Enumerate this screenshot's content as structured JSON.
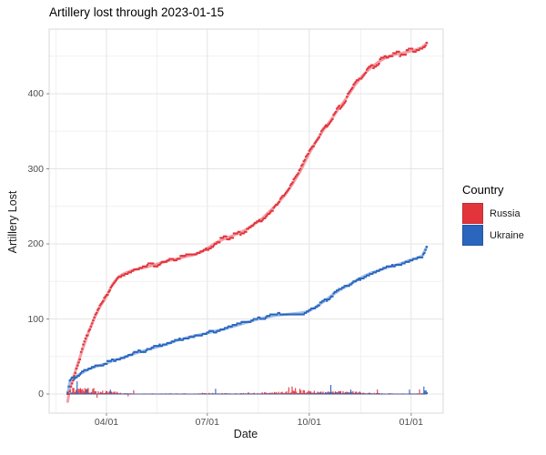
{
  "title": "Artillery lost through 2023-01-15",
  "axes": {
    "x_label": "Date",
    "y_label": "Artillery Lost",
    "x_tick_labels": [
      "04/01",
      "07/01",
      "10/01",
      "01/01"
    ],
    "y_tick_labels": [
      "0",
      "100",
      "200",
      "300",
      "400"
    ]
  },
  "legend": {
    "title": "Country",
    "items": [
      {
        "label": "Russia",
        "color": "#E3343C"
      },
      {
        "label": "Ukraine",
        "color": "#2A66BE"
      }
    ]
  },
  "chart_data": {
    "type": "line",
    "title": "Artillery lost through 2023-01-15",
    "xlabel": "Date",
    "ylabel": "Artillery Lost",
    "date_range": [
      "2022-02-25",
      "2023-01-15"
    ],
    "x_major_days": [
      35,
      126,
      218,
      310
    ],
    "x_major_labels": [
      "04/01",
      "07/01",
      "10/01",
      "01/01"
    ],
    "x_minor_days": [
      -10.5,
      80.5,
      172,
      264.5
    ],
    "y_major": [
      0,
      100,
      200,
      300,
      400
    ],
    "y_minor": [
      50,
      150,
      250,
      350,
      450
    ],
    "ylim": [
      -23,
      490
    ],
    "grid": true,
    "legend_position": "right",
    "legend_title": "Country",
    "series": [
      {
        "name": "Russia",
        "kind": "cumulative-points-with-smoother-and-daily-bars",
        "point_color": "#E3343C",
        "smooth_color": "#F19AA0",
        "bar_color": "#E3343C",
        "smooth_start_value": -10,
        "points_day_value": [
          [
            0,
            0
          ],
          [
            2,
            8
          ],
          [
            5,
            22
          ],
          [
            9,
            40
          ],
          [
            14,
            62
          ],
          [
            19,
            83
          ],
          [
            24,
            101
          ],
          [
            29,
            116
          ],
          [
            35,
            130
          ],
          [
            40,
            145
          ],
          [
            45,
            155
          ],
          [
            50,
            160
          ],
          [
            57,
            164
          ],
          [
            64,
            167
          ],
          [
            71,
            169
          ],
          [
            78,
            172
          ],
          [
            85,
            175
          ],
          [
            92,
            178
          ],
          [
            99,
            180
          ],
          [
            106,
            183
          ],
          [
            113,
            185
          ],
          [
            120,
            189
          ],
          [
            126,
            194
          ],
          [
            133,
            201
          ],
          [
            140,
            206
          ],
          [
            147,
            210
          ],
          [
            154,
            214
          ],
          [
            161,
            219
          ],
          [
            168,
            226
          ],
          [
            175,
            233
          ],
          [
            182,
            243
          ],
          [
            189,
            253
          ],
          [
            196,
            265
          ],
          [
            203,
            280
          ],
          [
            210,
            297
          ],
          [
            217,
            318
          ],
          [
            224,
            336
          ],
          [
            231,
            352
          ],
          [
            238,
            366
          ],
          [
            245,
            381
          ],
          [
            252,
            395
          ],
          [
            259,
            411
          ],
          [
            266,
            424
          ],
          [
            273,
            434
          ],
          [
            280,
            442
          ],
          [
            287,
            448
          ],
          [
            294,
            452
          ],
          [
            301,
            454
          ],
          [
            308,
            456
          ],
          [
            315,
            459
          ],
          [
            320,
            462
          ],
          [
            324,
            467
          ]
        ]
      },
      {
        "name": "Ukraine",
        "kind": "cumulative-points-with-smoother-and-daily-bars",
        "point_color": "#2A66BE",
        "smooth_color": "#9FBDE8",
        "bar_color": "#2A66BE",
        "points_day_value": [
          [
            0,
            0
          ],
          [
            2,
            17
          ],
          [
            5,
            21
          ],
          [
            9,
            25
          ],
          [
            14,
            29
          ],
          [
            19,
            33
          ],
          [
            24,
            36
          ],
          [
            29,
            38
          ],
          [
            35,
            41
          ],
          [
            42,
            45
          ],
          [
            49,
            48
          ],
          [
            56,
            52
          ],
          [
            63,
            55
          ],
          [
            70,
            58
          ],
          [
            77,
            61
          ],
          [
            84,
            64
          ],
          [
            91,
            67
          ],
          [
            98,
            71
          ],
          [
            105,
            74
          ],
          [
            112,
            77
          ],
          [
            119,
            79
          ],
          [
            126,
            81
          ],
          [
            133,
            84
          ],
          [
            140,
            86
          ],
          [
            147,
            89
          ],
          [
            154,
            92
          ],
          [
            161,
            95
          ],
          [
            168,
            98
          ],
          [
            175,
            101
          ],
          [
            182,
            103
          ],
          [
            189,
            105
          ],
          [
            196,
            106
          ],
          [
            203,
            107
          ],
          [
            210,
            108
          ],
          [
            217,
            110
          ],
          [
            224,
            116
          ],
          [
            231,
            123
          ],
          [
            238,
            131
          ],
          [
            245,
            138
          ],
          [
            252,
            144
          ],
          [
            259,
            150
          ],
          [
            266,
            156
          ],
          [
            273,
            161
          ],
          [
            280,
            164
          ],
          [
            287,
            168
          ],
          [
            294,
            171
          ],
          [
            301,
            174
          ],
          [
            308,
            178
          ],
          [
            315,
            181
          ],
          [
            320,
            184
          ],
          [
            324,
            196
          ]
        ]
      }
    ],
    "daily_bar_spikes": [
      {
        "day": 8,
        "country": "Ukraine",
        "value": 17
      },
      {
        "day": 3,
        "country": "Russia",
        "value": 6
      },
      {
        "day": 10,
        "country": "Russia",
        "value": 7
      },
      {
        "day": 13,
        "country": "Russia",
        "value": 6
      },
      {
        "day": 17,
        "country": "Ukraine",
        "value": 7
      },
      {
        "day": 24,
        "country": "Russia",
        "value": 8
      },
      {
        "day": 27,
        "country": "Russia",
        "value": -5
      },
      {
        "day": 38,
        "country": "Ukraine",
        "value": 6
      },
      {
        "day": 55,
        "country": "Russia",
        "value": -3
      },
      {
        "day": 60,
        "country": "Russia",
        "value": 5
      },
      {
        "day": 133,
        "country": "Ukraine",
        "value": 7
      },
      {
        "day": 200,
        "country": "Russia",
        "value": 9
      },
      {
        "day": 203,
        "country": "Russia",
        "value": 10
      },
      {
        "day": 206,
        "country": "Russia",
        "value": 8
      },
      {
        "day": 210,
        "country": "Russia",
        "value": 7
      },
      {
        "day": 237,
        "country": "Ukraine",
        "value": 12
      },
      {
        "day": 255,
        "country": "Ukraine",
        "value": 6
      },
      {
        "day": 280,
        "country": "Russia",
        "value": 6
      },
      {
        "day": 308,
        "country": "Ukraine",
        "value": 6
      },
      {
        "day": 318,
        "country": "Russia",
        "value": 6
      },
      {
        "day": 321,
        "country": "Ukraine",
        "value": 10
      }
    ]
  },
  "style": {
    "panel_border": "#D9D9D9",
    "grid_major": "#E4E4E4",
    "grid_minor": "#F1F1F1",
    "tick_mark": "#8C8C8C",
    "baseline": "#3A3A6B"
  }
}
